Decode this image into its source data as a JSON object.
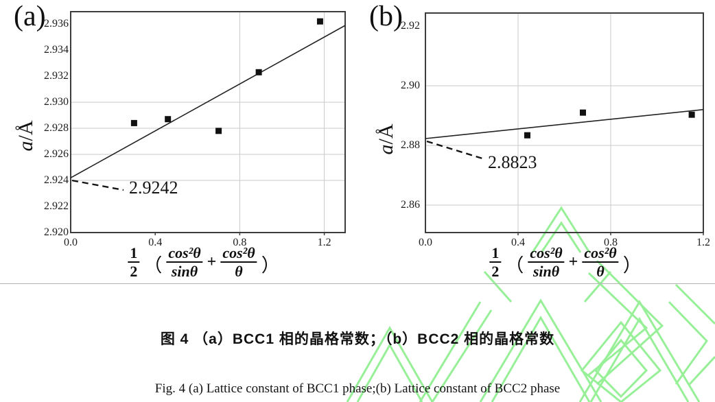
{
  "figure": {
    "panel_a": {
      "label": "(a)",
      "y_axis_title_var": "a",
      "y_axis_title_rest": "/Å",
      "annotation": "2.9242"
    },
    "panel_b": {
      "label": "(b)",
      "y_axis_title_var": "a",
      "y_axis_title_rest": "/Å",
      "annotation": "2.8823"
    },
    "x_axis_formula": {
      "half_num": "1",
      "half_den": "2",
      "open_paren": "（",
      "frac1_num": "cos²θ",
      "frac1_den": "sinθ",
      "plus": "+",
      "frac2_num": "cos²θ",
      "frac2_den": "θ",
      "close_paren": "）"
    }
  },
  "captions": {
    "chinese": "图 4 （a）BCC1 相的晶格常数；（b）BCC2 相的晶格常数",
    "english": "Fig. 4 (a) Lattice constant of BCC1 phase;(b) Lattice constant of BCC2 phase"
  },
  "colors": {
    "grid": "#c8c8c8",
    "axis": "#3c3c3c",
    "marker": "#111111",
    "fit_line": "#222222",
    "dash": "#141414",
    "watermark_green": "#8cef8c",
    "page_rule": "#b3b3b3"
  },
  "chart_data": [
    {
      "type": "scatter",
      "panel": "a",
      "title": "(a) Lattice constant of BCC1 phase",
      "xlabel": "1/2 (cos²θ/sinθ + cos²θ/θ)",
      "ylabel": "a/Å",
      "xlim": [
        0,
        1.3
      ],
      "ylim": [
        2.92,
        2.937
      ],
      "grid": true,
      "legend": null,
      "x_ticks": [
        0.0,
        0.4,
        0.8,
        1.2
      ],
      "x_tick_labels": [
        "0.0",
        "0.4",
        "0.8",
        "1.2"
      ],
      "y_ticks": [
        2.92,
        2.922,
        2.924,
        2.926,
        2.928,
        2.93,
        2.932,
        2.934,
        2.936
      ],
      "y_tick_labels": [
        "2.920",
        "2.922",
        "2.924",
        "2.926",
        "2.928",
        "2.930",
        "2.932",
        "2.934",
        "2.936"
      ],
      "h_gridlines": [
        2.924,
        2.926,
        2.928,
        2.93
      ],
      "v_gridlines": [
        0.8,
        1.2
      ],
      "points": [
        [
          0.3,
          2.9284
        ],
        [
          0.46,
          2.9287
        ],
        [
          0.7,
          2.9278
        ],
        [
          0.89,
          2.9323
        ],
        [
          1.18,
          2.9362
        ]
      ],
      "fit_line": {
        "intercept": 2.9242,
        "slope": 0.009
      },
      "annotation_value": "2.9242"
    },
    {
      "type": "scatter",
      "panel": "b",
      "title": "(b) Lattice constant of BCC2 phase",
      "xlabel": "1/2 (cos²θ/sinθ + cos²θ/θ)",
      "ylabel": "a/Å",
      "xlim": [
        0,
        1.2
      ],
      "ylim": [
        2.851,
        2.925
      ],
      "grid": true,
      "legend": null,
      "x_ticks": [
        0.0,
        0.4,
        0.8,
        1.2
      ],
      "x_tick_labels": [
        "0.0",
        "0.4",
        "0.8",
        "1.2"
      ],
      "y_ticks": [
        2.86,
        2.88,
        2.9,
        2.92
      ],
      "y_tick_labels": [
        "2.86",
        "2.88",
        "2.90",
        "2.92"
      ],
      "h_gridlines": [
        2.86,
        2.88,
        2.9
      ],
      "v_gridlines": [
        0.4,
        0.8
      ],
      "points": [
        [
          0.44,
          2.8834
        ],
        [
          0.68,
          2.891
        ],
        [
          1.15,
          2.8903
        ]
      ],
      "fit_line": {
        "intercept": 2.8823,
        "slope": 0.0081
      },
      "annotation_value": "2.8823"
    }
  ]
}
